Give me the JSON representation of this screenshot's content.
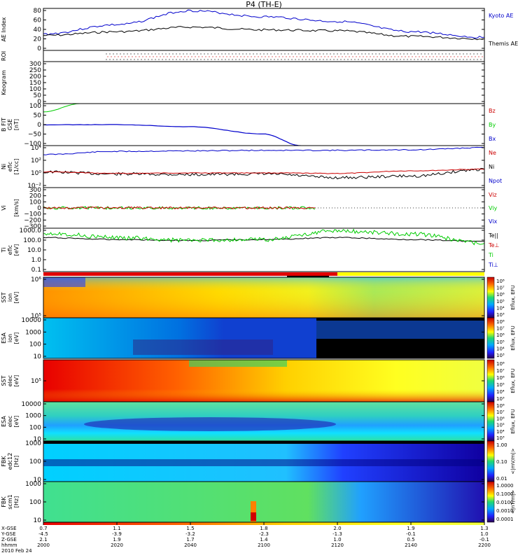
{
  "title": "P4 (TH-E)",
  "date": "2010 Feb 24",
  "colors": {
    "red": "#cc0000",
    "green": "#00cc00",
    "blue": "#0000cc",
    "black": "#000000",
    "bar_red": "#e00000",
    "bar_yellow": "#ffff00",
    "bar_black": "#000000"
  },
  "panels": [
    {
      "id": "ae",
      "ylabel": [
        "AE Index"
      ],
      "ticks": [
        "80",
        "60",
        "40",
        "20",
        "0"
      ],
      "legend": [
        {
          "text": "Kyoto AE",
          "color": "#0000cc"
        },
        {
          "text": "Themis AE",
          "color": "#000000"
        }
      ]
    },
    {
      "id": "roi",
      "ylabel": [
        "ROI"
      ],
      "ticks": [],
      "legend": []
    },
    {
      "id": "keogram",
      "ylabel": [
        "Keogram"
      ],
      "ticks": [
        "300",
        "250",
        "200",
        "150",
        "100",
        "50",
        "0"
      ],
      "legend": []
    },
    {
      "id": "bfit",
      "ylabel": [
        "B FIT",
        "GSE",
        "[nT]"
      ],
      "ticks": [
        "100",
        "50",
        "0",
        "−50",
        "−100"
      ],
      "legend": [
        {
          "text": "Bz",
          "color": "#cc0000"
        },
        {
          "text": "By",
          "color": "#00cc00"
        },
        {
          "text": "Bx",
          "color": "#0000cc"
        }
      ]
    },
    {
      "id": "ni",
      "ylabel": [
        "Ni",
        "eflc",
        "[1/cc]"
      ],
      "ticks": [
        "10⁴",
        "10²",
        "10⁰",
        "10⁻²"
      ],
      "legend": [
        {
          "text": "Ne",
          "color": "#cc0000"
        },
        {
          "text": "Ni",
          "color": "#000000"
        },
        {
          "text": "Npot",
          "color": "#0000cc"
        }
      ]
    },
    {
      "id": "vi",
      "ylabel": [
        "Vi",
        "",
        "[km/s]"
      ],
      "ticks": [
        "300",
        "200",
        "100",
        "0",
        "−100",
        "−200",
        "−300"
      ],
      "legend": [
        {
          "text": "Viz",
          "color": "#cc0000"
        },
        {
          "text": "Viy",
          "color": "#00cc00"
        },
        {
          "text": "Vix",
          "color": "#0000cc"
        }
      ]
    },
    {
      "id": "ti",
      "ylabel": [
        "Ti",
        "eflc",
        "[eV]"
      ],
      "ticks": [
        "1000.0",
        "100.0",
        "10.0",
        "1.0",
        "0.1"
      ],
      "legend": [
        {
          "text": "Te||",
          "color": "#000000"
        },
        {
          "text": "Te⊥",
          "color": "#cc0000"
        },
        {
          "text": "Ti",
          "color": "#00cc00"
        },
        {
          "text": "Ti⊥",
          "color": "#0000cc"
        }
      ]
    },
    {
      "id": "sst_i",
      "ylabel": [
        "SST",
        "ion",
        "[eV]"
      ],
      "ticks": [
        "10⁶",
        "10⁵"
      ],
      "legend": []
    },
    {
      "id": "esa_i",
      "ylabel": [
        "ESA",
        "ion",
        "[eV]"
      ],
      "ticks": [
        "10000",
        "1000",
        "100",
        "10"
      ],
      "legend": []
    },
    {
      "id": "sst_e",
      "ylabel": [
        "SST",
        "elec",
        "[eV]"
      ],
      "ticks": [
        "10⁵"
      ],
      "legend": []
    },
    {
      "id": "esa_e",
      "ylabel": [
        "ESA",
        "elec",
        "[eV]"
      ],
      "ticks": [
        "10000",
        "1000",
        "100",
        "10"
      ],
      "legend": []
    },
    {
      "id": "fbk1",
      "ylabel": [
        "FBK",
        "edc12",
        "[Hz]"
      ],
      "ticks": [
        "1000",
        "100",
        "10"
      ],
      "legend": []
    },
    {
      "id": "fbk2",
      "ylabel": [
        "FBK",
        "scm1",
        "[Hz]"
      ],
      "ticks": [
        "1000",
        "100",
        "10"
      ],
      "legend": []
    }
  ],
  "colorbars": [
    {
      "labels": [
        "10⁸",
        "10⁷",
        "10⁶",
        "10⁵",
        "10⁴",
        "10³"
      ],
      "unit": "Eflux, EFU"
    },
    {
      "labels": [
        "10⁸",
        "10⁷",
        "10⁶",
        "10⁵",
        "10⁴",
        "10³"
      ],
      "unit": "Eflux, EFU"
    },
    {
      "labels": [
        "10⁸",
        "10⁷",
        "10⁶",
        "10⁵",
        "10⁴",
        "10³"
      ],
      "unit": "Eflux, EFU"
    },
    {
      "labels": [
        "10⁸",
        "10⁷",
        "10⁶",
        "10⁵",
        "10⁴",
        "10³"
      ],
      "unit": "Eflux, EFU"
    },
    {
      "labels": [
        "1.00",
        "0.10",
        "0.01"
      ],
      "unit": "<|mV/m|>"
    },
    {
      "labels": [
        "1.0000",
        "0.1000",
        "0.0100",
        "0.0010",
        "0.0001"
      ],
      "unit": "<|nT/m|>"
    }
  ],
  "xaxis": {
    "row_labels": [
      "X-GSE",
      "Y-GSE",
      "Z-GSE",
      "hhmm"
    ],
    "columns": [
      [
        "0.7",
        "-4.5",
        "2.1",
        "2000"
      ],
      [
        "1.1",
        "-3.9",
        "1.9",
        "2020"
      ],
      [
        "1.5",
        "-3.2",
        "1.7",
        "2040"
      ],
      [
        "1.8",
        "-2.3",
        "1.4",
        "2100"
      ],
      [
        "2.0",
        "-1.3",
        "1.0",
        "2120"
      ],
      [
        "1.9",
        "-0.1",
        "0.5",
        "2140"
      ],
      [
        "1.3",
        "1.0",
        "-0.1",
        "2200"
      ]
    ]
  },
  "chart_data": [
    {
      "type": "line",
      "panel": "AE Index",
      "x_label": "hhmm",
      "x": [
        "2000",
        "2020",
        "2040",
        "2100",
        "2120",
        "2140",
        "2200"
      ],
      "ylim": [
        0,
        90
      ],
      "series": [
        {
          "name": "Kyoto AE",
          "values": [
            35,
            55,
            85,
            72,
            62,
            40,
            28
          ]
        },
        {
          "name": "Themis AE",
          "values": [
            32,
            40,
            50,
            44,
            42,
            30,
            25
          ]
        }
      ]
    },
    {
      "type": "line",
      "panel": "B FIT",
      "ylim": [
        -100,
        100
      ],
      "series": [
        {
          "name": "By",
          "x": [
            "2000",
            "2010"
          ],
          "values": [
            60,
            100
          ]
        },
        {
          "name": "Bx",
          "x": [
            "2000",
            "2020",
            "2040",
            "2100",
            "2110"
          ],
          "values": [
            -1,
            0,
            -10,
            -45,
            -100
          ]
        }
      ]
    },
    {
      "type": "line",
      "panel": "Ni",
      "ylim_log10": [
        -3,
        5
      ],
      "series": [
        {
          "name": "Npot",
          "values": [
            3.3,
            3.9,
            4.0,
            4.1,
            4.1,
            4.2,
            4.6
          ]
        },
        {
          "name": "Ne",
          "values": [
            0,
            -0.3,
            -0.2,
            -0.2,
            -0.3,
            0.2,
            0.5
          ]
        },
        {
          "name": "Ni",
          "values": [
            0,
            -0.4,
            -0.5,
            -0.4,
            -1.1,
            -0.8,
            0.5
          ]
        }
      ]
    },
    {
      "type": "line",
      "panel": "Ti",
      "ylim_log10": [
        -1.3,
        3.3
      ],
      "series": [
        {
          "name": "Te||",
          "values": [
            2.3,
            2.1,
            2.0,
            2.1,
            2.3,
            2.1,
            1.9
          ]
        },
        {
          "name": "Ti",
          "values": [
            2.8,
            2.3,
            2.0,
            2.1,
            3.0,
            2.7,
            1.7
          ]
        }
      ]
    }
  ]
}
